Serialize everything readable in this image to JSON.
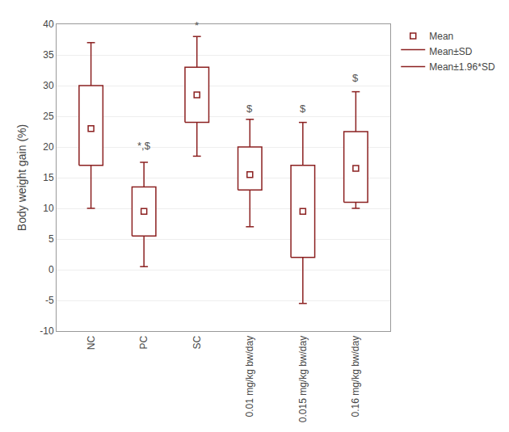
{
  "chart_data": {
    "type": "box",
    "categories": [
      "NC",
      "PC",
      "SC",
      "0.01 mg/kg bw/day",
      "0.015 mg/kg bw/day",
      "0.16 mg/kg bw/day"
    ],
    "values": [
      23,
      9.5,
      28.5,
      15.5,
      9.5,
      16.5
    ],
    "sd_low": [
      17,
      5.5,
      24,
      13,
      2,
      11
    ],
    "sd_high": [
      30,
      13.5,
      33,
      20,
      17,
      22.5
    ],
    "whisker_low": [
      10,
      0.5,
      18.5,
      7,
      -5.5,
      10
    ],
    "whisker_high": [
      37,
      17.5,
      38,
      24.5,
      24,
      29
    ],
    "annotations": [
      {
        "category": "SC",
        "y": 38.5,
        "text": "*"
      },
      {
        "category": "PC",
        "y": 19.0,
        "text": "*,$"
      },
      {
        "category": "0.01 mg/kg bw/day",
        "y": 25.0,
        "text": "$"
      },
      {
        "category": "0.015 mg/kg bw/day",
        "y": 25.0,
        "text": "$"
      },
      {
        "category": "0.16 mg/kg bw/day",
        "y": 30.0,
        "text": "$"
      }
    ],
    "color": "#8B2020",
    "ylim": [
      -10,
      40
    ],
    "yticks": [
      -10,
      -5,
      0,
      5,
      10,
      15,
      20,
      25,
      30,
      35,
      40
    ],
    "ylabel": "Body weight gain (%)",
    "legend_labels": [
      "Mean",
      "Mean±SD",
      "Mean±1.96*SD"
    ],
    "legend": "right",
    "grid": true
  }
}
